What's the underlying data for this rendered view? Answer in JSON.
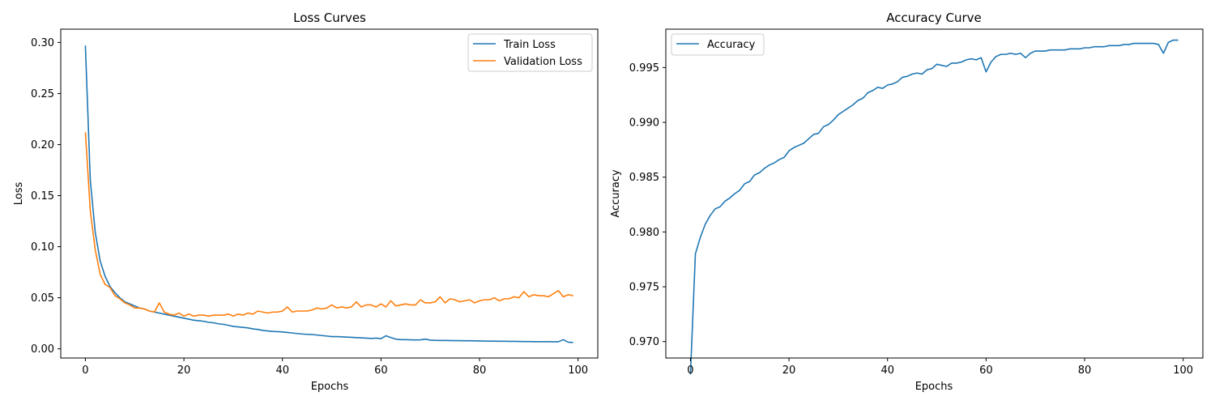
{
  "chart_data": [
    {
      "type": "line",
      "title": "Loss Curves",
      "xlabel": "Epochs",
      "ylabel": "Loss",
      "xlim": [
        -5,
        104
      ],
      "ylim": [
        -0.009,
        0.313
      ],
      "xticks": [
        0,
        20,
        40,
        60,
        80,
        100
      ],
      "xtick_labels": [
        "0",
        "20",
        "40",
        "60",
        "80",
        "100"
      ],
      "yticks": [
        0.0,
        0.05,
        0.1,
        0.15,
        0.2,
        0.25,
        0.3
      ],
      "ytick_labels": [
        "0.00",
        "0.05",
        "0.10",
        "0.15",
        "0.20",
        "0.25",
        "0.30"
      ],
      "grid": false,
      "legend_position": "top-right",
      "series": [
        {
          "name": "Train Loss",
          "color": "#1f77b4",
          "x": [
            0,
            1,
            2,
            3,
            4,
            5,
            6,
            7,
            8,
            9,
            10,
            11,
            12,
            13,
            14,
            15,
            16,
            17,
            18,
            19,
            20,
            21,
            22,
            23,
            24,
            25,
            26,
            27,
            28,
            29,
            30,
            31,
            32,
            33,
            34,
            35,
            36,
            37,
            38,
            39,
            40,
            41,
            42,
            43,
            44,
            45,
            46,
            47,
            48,
            49,
            50,
            51,
            52,
            53,
            54,
            55,
            56,
            57,
            58,
            59,
            60,
            61,
            62,
            63,
            64,
            65,
            66,
            67,
            68,
            69,
            70,
            71,
            72,
            73,
            74,
            75,
            76,
            77,
            78,
            79,
            80,
            81,
            82,
            83,
            84,
            85,
            86,
            87,
            88,
            89,
            90,
            91,
            92,
            93,
            94,
            95,
            96,
            97,
            98,
            99
          ],
          "values": [
            0.297,
            0.165,
            0.114,
            0.086,
            0.071,
            0.061,
            0.055,
            0.05,
            0.046,
            0.044,
            0.042,
            0.04,
            0.039,
            0.037,
            0.036,
            0.035,
            0.034,
            0.033,
            0.032,
            0.031,
            0.03,
            0.029,
            0.028,
            0.0275,
            0.027,
            0.026,
            0.0255,
            0.0245,
            0.024,
            0.023,
            0.022,
            0.0215,
            0.021,
            0.0205,
            0.0195,
            0.019,
            0.018,
            0.0175,
            0.017,
            0.0168,
            0.0165,
            0.016,
            0.0155,
            0.015,
            0.0145,
            0.0142,
            0.014,
            0.0135,
            0.013,
            0.0125,
            0.012,
            0.012,
            0.0118,
            0.0115,
            0.0113,
            0.011,
            0.0108,
            0.0105,
            0.0102,
            0.0105,
            0.01,
            0.0128,
            0.011,
            0.0095,
            0.009,
            0.009,
            0.0088,
            0.0087,
            0.0088,
            0.0095,
            0.0085,
            0.0083,
            0.0082,
            0.0082,
            0.0081,
            0.008,
            0.008,
            0.0079,
            0.0079,
            0.0078,
            0.0077,
            0.0076,
            0.0075,
            0.0075,
            0.0074,
            0.0074,
            0.0073,
            0.0073,
            0.0072,
            0.0071,
            0.0071,
            0.007,
            0.007,
            0.007,
            0.007,
            0.0069,
            0.0069,
            0.009,
            0.0065,
            0.0062
          ]
        },
        {
          "name": "Validation Loss",
          "color": "#ff7f0e",
          "x": [
            0,
            1,
            2,
            3,
            4,
            5,
            6,
            7,
            8,
            9,
            10,
            11,
            12,
            13,
            14,
            15,
            16,
            17,
            18,
            19,
            20,
            21,
            22,
            23,
            24,
            25,
            26,
            27,
            28,
            29,
            30,
            31,
            32,
            33,
            34,
            35,
            36,
            37,
            38,
            39,
            40,
            41,
            42,
            43,
            44,
            45,
            46,
            47,
            48,
            49,
            50,
            51,
            52,
            53,
            54,
            55,
            56,
            57,
            58,
            59,
            60,
            61,
            62,
            63,
            64,
            65,
            66,
            67,
            68,
            69,
            70,
            71,
            72,
            73,
            74,
            75,
            76,
            77,
            78,
            79,
            80,
            81,
            82,
            83,
            84,
            85,
            86,
            87,
            88,
            89,
            90,
            91,
            92,
            93,
            94,
            95,
            96,
            97,
            98,
            99
          ],
          "values": [
            0.212,
            0.135,
            0.097,
            0.073,
            0.063,
            0.06,
            0.052,
            0.049,
            0.045,
            0.043,
            0.04,
            0.04,
            0.039,
            0.037,
            0.036,
            0.045,
            0.036,
            0.034,
            0.033,
            0.035,
            0.032,
            0.034,
            0.032,
            0.033,
            0.033,
            0.032,
            0.033,
            0.033,
            0.033,
            0.034,
            0.032,
            0.034,
            0.033,
            0.035,
            0.034,
            0.037,
            0.036,
            0.035,
            0.036,
            0.036,
            0.037,
            0.041,
            0.036,
            0.037,
            0.037,
            0.037,
            0.038,
            0.04,
            0.039,
            0.04,
            0.043,
            0.04,
            0.041,
            0.04,
            0.041,
            0.046,
            0.041,
            0.043,
            0.043,
            0.041,
            0.044,
            0.041,
            0.047,
            0.042,
            0.043,
            0.044,
            0.043,
            0.043,
            0.048,
            0.045,
            0.045,
            0.046,
            0.051,
            0.045,
            0.049,
            0.048,
            0.046,
            0.047,
            0.048,
            0.045,
            0.047,
            0.048,
            0.048,
            0.05,
            0.047,
            0.049,
            0.049,
            0.051,
            0.05,
            0.056,
            0.051,
            0.053,
            0.052,
            0.052,
            0.051,
            0.054,
            0.057,
            0.051,
            0.053,
            0.052
          ]
        }
      ]
    },
    {
      "type": "line",
      "title": "Accuracy Curve",
      "xlabel": "Epochs",
      "ylabel": "Accuracy",
      "xlim": [
        -5,
        104
      ],
      "ylim": [
        0.9685,
        0.9985
      ],
      "xticks": [
        0,
        20,
        40,
        60,
        80,
        100
      ],
      "xtick_labels": [
        "0",
        "20",
        "40",
        "60",
        "80",
        "100"
      ],
      "yticks": [
        0.97,
        0.975,
        0.98,
        0.985,
        0.99,
        0.995
      ],
      "ytick_labels": [
        "0.970",
        "0.975",
        "0.980",
        "0.985",
        "0.990",
        "0.995"
      ],
      "grid": false,
      "legend_position": "top-left",
      "series": [
        {
          "name": "Accuracy",
          "color": "#1f77b4",
          "x": [
            0,
            1,
            2,
            3,
            4,
            5,
            6,
            7,
            8,
            9,
            10,
            11,
            12,
            13,
            14,
            15,
            16,
            17,
            18,
            19,
            20,
            21,
            22,
            23,
            24,
            25,
            26,
            27,
            28,
            29,
            30,
            31,
            32,
            33,
            34,
            35,
            36,
            37,
            38,
            39,
            40,
            41,
            42,
            43,
            44,
            45,
            46,
            47,
            48,
            49,
            50,
            51,
            52,
            53,
            54,
            55,
            56,
            57,
            58,
            59,
            60,
            61,
            62,
            63,
            64,
            65,
            66,
            67,
            68,
            69,
            70,
            71,
            72,
            73,
            74,
            75,
            76,
            77,
            78,
            79,
            80,
            81,
            82,
            83,
            84,
            85,
            86,
            87,
            88,
            89,
            90,
            91,
            92,
            93,
            94,
            95,
            96,
            97,
            98,
            99
          ],
          "values": [
            0.967,
            0.978,
            0.9795,
            0.9807,
            0.9815,
            0.9821,
            0.9823,
            0.9828,
            0.9831,
            0.9835,
            0.9838,
            0.9844,
            0.9846,
            0.9852,
            0.9854,
            0.9858,
            0.9861,
            0.9863,
            0.9866,
            0.9868,
            0.9874,
            0.9877,
            0.9879,
            0.9881,
            0.9885,
            0.9889,
            0.989,
            0.9896,
            0.9898,
            0.9902,
            0.9907,
            0.991,
            0.9913,
            0.9916,
            0.992,
            0.9922,
            0.9927,
            0.9929,
            0.9932,
            0.9931,
            0.9934,
            0.9935,
            0.9937,
            0.9941,
            0.9942,
            0.9944,
            0.9945,
            0.9944,
            0.9948,
            0.9949,
            0.9953,
            0.9952,
            0.9951,
            0.9954,
            0.9954,
            0.9955,
            0.9957,
            0.9958,
            0.9957,
            0.9959,
            0.9946,
            0.9955,
            0.996,
            0.9962,
            0.9962,
            0.9963,
            0.9962,
            0.9963,
            0.9959,
            0.9963,
            0.9965,
            0.9965,
            0.9965,
            0.9966,
            0.9966,
            0.9966,
            0.9966,
            0.9967,
            0.9967,
            0.9967,
            0.9968,
            0.9968,
            0.9969,
            0.9969,
            0.9969,
            0.997,
            0.997,
            0.997,
            0.9971,
            0.9971,
            0.9972,
            0.9972,
            0.9972,
            0.9972,
            0.9972,
            0.9971,
            0.9963,
            0.9973,
            0.9975,
            0.9975
          ]
        }
      ]
    }
  ]
}
